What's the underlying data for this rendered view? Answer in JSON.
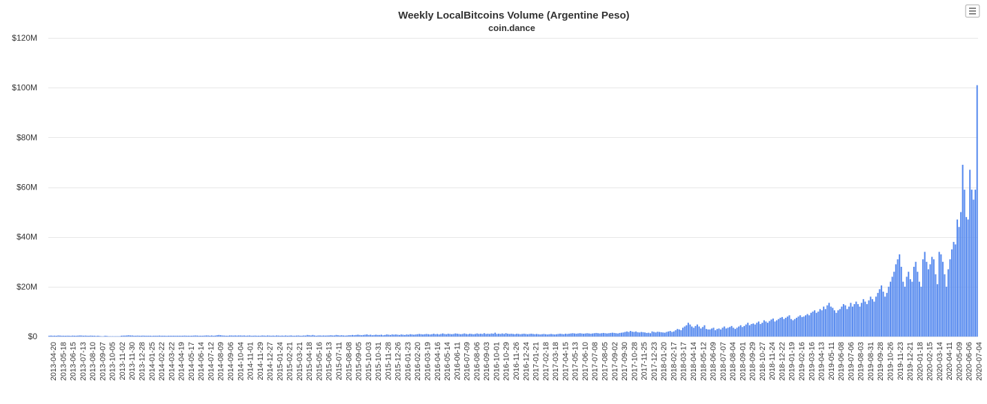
{
  "chart_data": {
    "type": "bar",
    "title": "Weekly LocalBitcoins Volume (Argentine Peso)",
    "subtitle": "coin.dance",
    "start_date": "2013-04-20",
    "end_date": "2020-07-04",
    "xlabel": "",
    "ylabel": "",
    "ylim": [
      0,
      120000000
    ],
    "y_ticks": [
      0,
      20000000,
      40000000,
      60000000,
      80000000,
      100000000,
      120000000
    ],
    "y_tick_labels": [
      "$0",
      "$20M",
      "$40M",
      "$60M",
      "$80M",
      "$100M",
      "$120M"
    ],
    "x_tick_labels": [
      "2013-04-20",
      "2013-05-18",
      "2013-06-15",
      "2013-07-13",
      "2013-08-10",
      "2013-09-07",
      "2013-10-05",
      "2013-11-02",
      "2013-11-30",
      "2013-12-28",
      "2014-01-25",
      "2014-02-22",
      "2014-03-22",
      "2014-04-19",
      "2014-05-17",
      "2014-06-14",
      "2014-07-12",
      "2014-08-09",
      "2014-09-06",
      "2014-10-04",
      "2014-11-01",
      "2014-11-29",
      "2014-12-27",
      "2015-01-24",
      "2015-02-21",
      "2015-03-21",
      "2015-04-18",
      "2015-05-16",
      "2015-06-13",
      "2015-07-11",
      "2015-08-08",
      "2015-09-05",
      "2015-10-03",
      "2015-10-31",
      "2015-11-28",
      "2015-12-26",
      "2016-01-23",
      "2016-02-20",
      "2016-03-19",
      "2016-04-16",
      "2016-05-14",
      "2016-06-11",
      "2016-07-09",
      "2016-08-06",
      "2016-09-03",
      "2016-10-01",
      "2016-10-29",
      "2016-11-26",
      "2016-12-24",
      "2017-01-21",
      "2017-02-18",
      "2017-03-18",
      "2017-04-15",
      "2017-05-13",
      "2017-06-10",
      "2017-07-08",
      "2017-08-05",
      "2017-09-02",
      "2017-09-30",
      "2017-10-28",
      "2017-11-25",
      "2017-12-23",
      "2018-01-20",
      "2018-02-17",
      "2018-03-17",
      "2018-04-14",
      "2018-05-12",
      "2018-06-09",
      "2018-07-07",
      "2018-08-04",
      "2018-09-01",
      "2018-09-29",
      "2018-10-27",
      "2018-11-24",
      "2018-12-22",
      "2019-01-19",
      "2019-02-16",
      "2019-03-16",
      "2019-04-13",
      "2019-05-11",
      "2019-06-08",
      "2019-07-06",
      "2019-08-03",
      "2019-08-31",
      "2019-09-28",
      "2019-10-26",
      "2019-11-23",
      "2019-12-21",
      "2020-01-18",
      "2020-02-15",
      "2020-03-14",
      "2020-04-11",
      "2020-05-09",
      "2020-06-06",
      "2020-07-04"
    ],
    "grid": true,
    "legend": "none",
    "bar_color": "#5b8def",
    "values_millions": [
      0.3,
      0.35,
      0.3,
      0.32,
      0.28,
      0.4,
      0.35,
      0.3,
      0.3,
      0.28,
      0.32,
      0.3,
      0.25,
      0.35,
      0.3,
      0.3,
      0.35,
      0.4,
      0.38,
      0.3,
      0.35,
      0.3,
      0.28,
      0.35,
      0.3,
      0.3,
      0.2,
      0.3,
      0.2,
      0.1,
      0.1,
      0.3,
      0.2,
      0.1,
      0.1,
      0.1,
      0.1,
      0.1,
      0.1,
      0.1,
      0.3,
      0.35,
      0.35,
      0.4,
      0.5,
      0.4,
      0.4,
      0.3,
      0.3,
      0.35,
      0.3,
      0.3,
      0.35,
      0.3,
      0.3,
      0.3,
      0.3,
      0.25,
      0.3,
      0.3,
      0.3,
      0.35,
      0.3,
      0.3,
      0.3,
      0.25,
      0.3,
      0.3,
      0.3,
      0.3,
      0.3,
      0.3,
      0.3,
      0.3,
      0.3,
      0.35,
      0.3,
      0.3,
      0.3,
      0.3,
      0.35,
      0.4,
      0.35,
      0.3,
      0.3,
      0.3,
      0.35,
      0.4,
      0.4,
      0.3,
      0.4,
      0.3,
      0.35,
      0.5,
      0.6,
      0.5,
      0.4,
      0.35,
      0.3,
      0.3,
      0.4,
      0.4,
      0.35,
      0.4,
      0.35,
      0.4,
      0.4,
      0.35,
      0.4,
      0.3,
      0.35,
      0.4,
      0.3,
      0.3,
      0.35,
      0.3,
      0.3,
      0.3,
      0.4,
      0.35,
      0.3,
      0.4,
      0.35,
      0.3,
      0.35,
      0.3,
      0.4,
      0.35,
      0.3,
      0.35,
      0.3,
      0.4,
      0.3,
      0.35,
      0.4,
      0.3,
      0.3,
      0.35,
      0.4,
      0.3,
      0.3,
      0.4,
      0.35,
      0.6,
      0.5,
      0.4,
      0.6,
      0.4,
      0.3,
      0.4,
      0.4,
      0.35,
      0.4,
      0.35,
      0.4,
      0.4,
      0.5,
      0.4,
      0.4,
      0.6,
      0.5,
      0.4,
      0.5,
      0.4,
      0.35,
      0.4,
      0.5,
      0.5,
      0.6,
      0.5,
      0.6,
      0.7,
      0.6,
      0.5,
      0.6,
      0.7,
      0.8,
      0.6,
      0.7,
      0.5,
      0.6,
      0.7,
      0.6,
      0.6,
      0.7,
      0.5,
      0.6,
      0.8,
      0.7,
      0.6,
      0.8,
      0.7,
      0.8,
      0.7,
      0.6,
      0.8,
      0.7,
      0.6,
      0.8,
      0.7,
      0.9,
      0.8,
      0.7,
      0.8,
      0.9,
      1.0,
      0.9,
      0.8,
      0.9,
      1.0,
      0.9,
      0.8,
      0.9,
      1.1,
      0.9,
      1.0,
      0.8,
      1.0,
      1.2,
      1.0,
      0.9,
      1.1,
      1.0,
      0.9,
      1.0,
      1.2,
      1.1,
      1.0,
      0.9,
      1.0,
      1.2,
      1.0,
      0.9,
      1.1,
      1.0,
      0.9,
      1.0,
      1.2,
      1.0,
      1.1,
      1.0,
      1.3,
      1.0,
      1.1,
      1.0,
      1.2,
      1.1,
      1.5,
      1.0,
      1.1,
      1.0,
      1.2,
      1.0,
      1.3,
      1.1,
      1.0,
      1.1,
      1.0,
      0.9,
      1.1,
      1.0,
      0.9,
      1.0,
      1.1,
      1.0,
      0.9,
      1.0,
      1.1,
      1.0,
      0.9,
      1.0,
      0.9,
      0.8,
      0.9,
      1.0,
      0.9,
      0.8,
      0.9,
      1.0,
      0.9,
      0.8,
      0.9,
      1.0,
      1.1,
      1.0,
      0.9,
      1.1,
      1.0,
      1.1,
      1.2,
      1.3,
      1.2,
      1.1,
      1.2,
      1.3,
      1.2,
      1.1,
      1.2,
      1.3,
      1.2,
      1.1,
      1.2,
      1.3,
      1.4,
      1.3,
      1.2,
      1.3,
      1.4,
      1.3,
      1.2,
      1.3,
      1.4,
      1.5,
      1.4,
      1.3,
      1.2,
      1.4,
      1.5,
      1.6,
      1.8,
      2.0,
      1.8,
      2.2,
      1.9,
      1.8,
      2.0,
      1.7,
      1.6,
      1.8,
      1.7,
      1.6,
      1.4,
      1.5,
      1.3,
      2.0,
      1.8,
      1.6,
      1.9,
      1.8,
      1.7,
      1.6,
      1.5,
      1.8,
      2.0,
      2.2,
      1.8,
      2.0,
      2.5,
      3.0,
      2.8,
      2.5,
      3.5,
      4.0,
      4.5,
      5.5,
      4.8,
      4.0,
      3.5,
      4.2,
      4.8,
      4.0,
      3.2,
      3.8,
      4.5,
      3.0,
      2.8,
      2.8,
      3.2,
      3.5,
      2.5,
      3.0,
      3.2,
      2.8,
      3.5,
      4.0,
      3.2,
      3.5,
      3.8,
      4.2,
      3.5,
      3.0,
      3.5,
      4.0,
      4.5,
      3.8,
      4.2,
      4.8,
      5.5,
      4.5,
      5.0,
      5.2,
      4.8,
      5.5,
      6.0,
      5.0,
      5.5,
      6.5,
      6.0,
      5.5,
      6.2,
      6.8,
      7.2,
      6.0,
      6.5,
      7.0,
      7.5,
      7.8,
      7.0,
      7.5,
      8.0,
      8.5,
      7.0,
      6.5,
      7.0,
      7.5,
      8.0,
      8.5,
      7.8,
      8.0,
      8.5,
      9.0,
      8.5,
      9.5,
      10.0,
      10.5,
      9.5,
      10.0,
      11.0,
      10.5,
      12.0,
      11.0,
      12.5,
      13.5,
      12.0,
      11.5,
      10.5,
      9.5,
      10.5,
      11.0,
      12.0,
      13.0,
      12.5,
      11.0,
      12.0,
      13.5,
      12.0,
      13.0,
      14.0,
      13.0,
      12.0,
      13.5,
      15.0,
      14.0,
      13.0,
      14.5,
      16.0,
      15.0,
      14.0,
      16.0,
      17.5,
      19.0,
      20.5,
      18.0,
      16.0,
      17.5,
      20.0,
      22.0,
      24.0,
      26.0,
      29.0,
      31.0,
      33.0,
      28.0,
      22.0,
      20.0,
      24.0,
      26.0,
      23.0,
      22.0,
      28.0,
      30.0,
      26.0,
      22.0,
      20.0,
      31.0,
      34.0,
      30.0,
      27.0,
      29.0,
      32.0,
      31.0,
      25.0,
      21.0,
      34.0,
      33.0,
      30.0,
      25.0,
      20.0,
      27.0,
      31.0,
      35.0,
      38.0,
      37.0,
      47.0,
      44.0,
      50.0,
      69.0,
      59.0,
      48.0,
      47.0,
      67.0,
      59.0,
      55.0,
      59.0,
      101.0
    ]
  },
  "ui": {
    "menu_icon": "hamburger-menu-icon"
  }
}
